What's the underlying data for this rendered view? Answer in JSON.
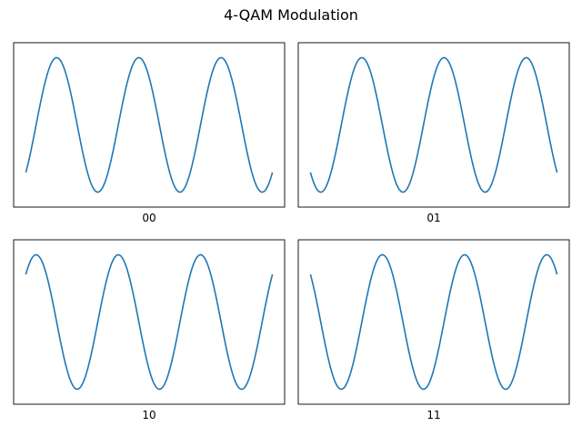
{
  "title": "4-QAM Modulation",
  "colors": {
    "line": "#1f77b4",
    "axes": "#000000",
    "background": "#ffffff"
  },
  "chart_data": [
    {
      "type": "line",
      "xlabel": "00",
      "title": "",
      "ylabel": "",
      "series": [
        {
          "name": "",
          "function": "cos",
          "cycles": 3,
          "phase_deg": 225,
          "amplitude": 1,
          "samples": 200
        }
      ],
      "xticks": [],
      "yticks": [],
      "grid": false
    },
    {
      "type": "line",
      "xlabel": "01",
      "title": "",
      "ylabel": "",
      "series": [
        {
          "name": "",
          "function": "cos",
          "cycles": 3,
          "phase_deg": 135,
          "amplitude": 1,
          "samples": 200
        }
      ],
      "xticks": [],
      "yticks": [],
      "grid": false
    },
    {
      "type": "line",
      "xlabel": "10",
      "title": "",
      "ylabel": "",
      "series": [
        {
          "name": "",
          "function": "cos",
          "cycles": 3,
          "phase_deg": 315,
          "amplitude": 1,
          "samples": 200
        }
      ],
      "xticks": [],
      "yticks": [],
      "grid": false
    },
    {
      "type": "line",
      "xlabel": "11",
      "title": "",
      "ylabel": "",
      "series": [
        {
          "name": "",
          "function": "cos",
          "cycles": 3,
          "phase_deg": 45,
          "amplitude": 1,
          "samples": 200
        }
      ],
      "xticks": [],
      "yticks": [],
      "grid": false
    }
  ]
}
